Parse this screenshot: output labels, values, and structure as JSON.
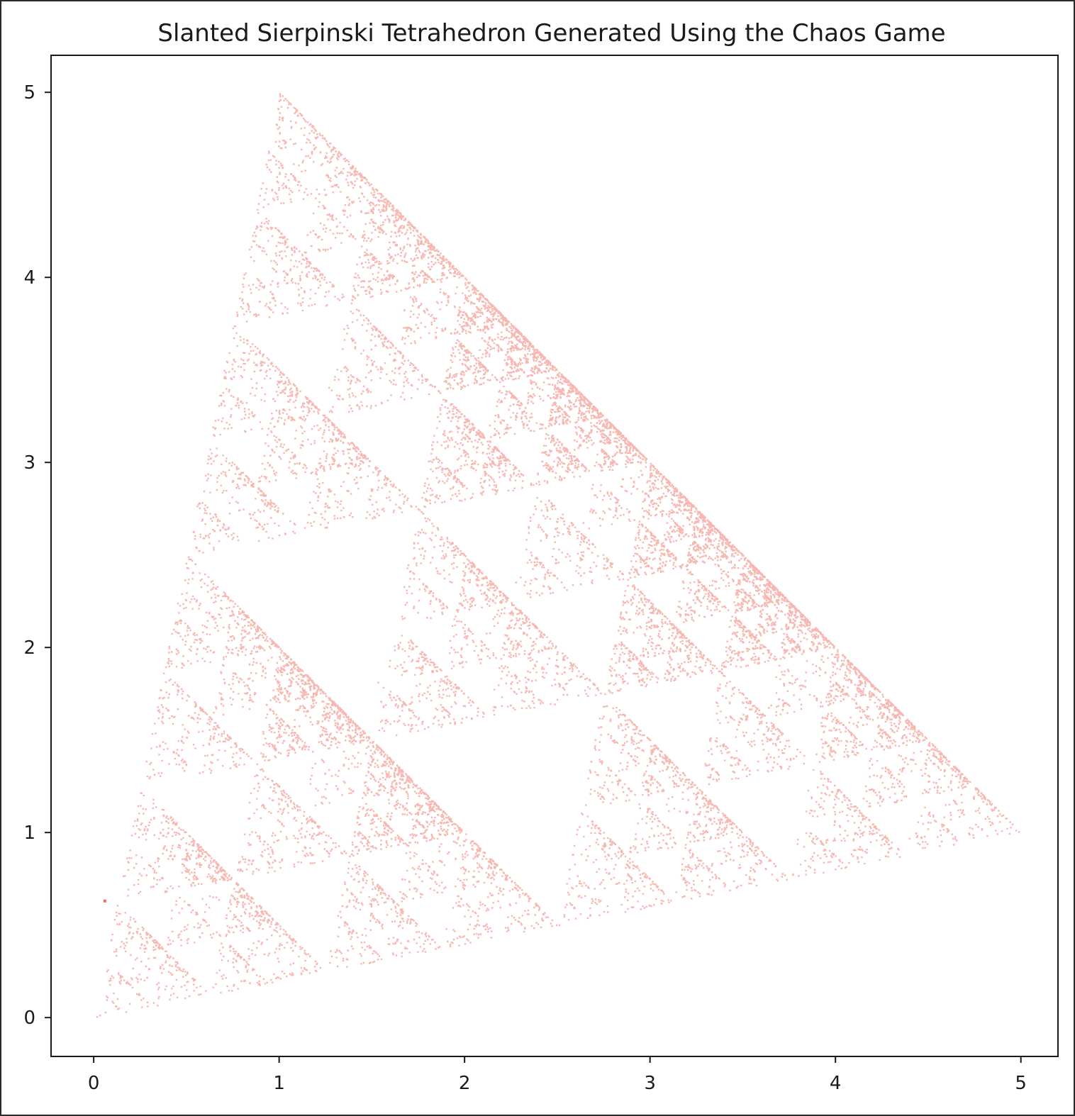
{
  "chart_data": {
    "type": "scatter",
    "title": "Slanted Sierpinski Tetrahedron Generated Using the Chaos Game",
    "xlabel": "",
    "ylabel": "",
    "xlim": [
      -0.23,
      5.2
    ],
    "ylim": [
      -0.21,
      5.2
    ],
    "x_ticks": [
      0,
      1,
      2,
      3,
      4,
      5
    ],
    "y_ticks": [
      0,
      1,
      2,
      3,
      4,
      5
    ],
    "grid": false,
    "legend": "none",
    "marker_color": "#e8311f",
    "marker_alpha": 0.35,
    "vertices": [
      {
        "x": 0,
        "y": 0
      },
      {
        "x": 1,
        "y": 5
      },
      {
        "x": 3,
        "y": 3
      },
      {
        "x": 5,
        "y": 1
      }
    ],
    "seed_point": {
      "x": 0.06,
      "y": 0.63
    },
    "iterations": 60000
  }
}
